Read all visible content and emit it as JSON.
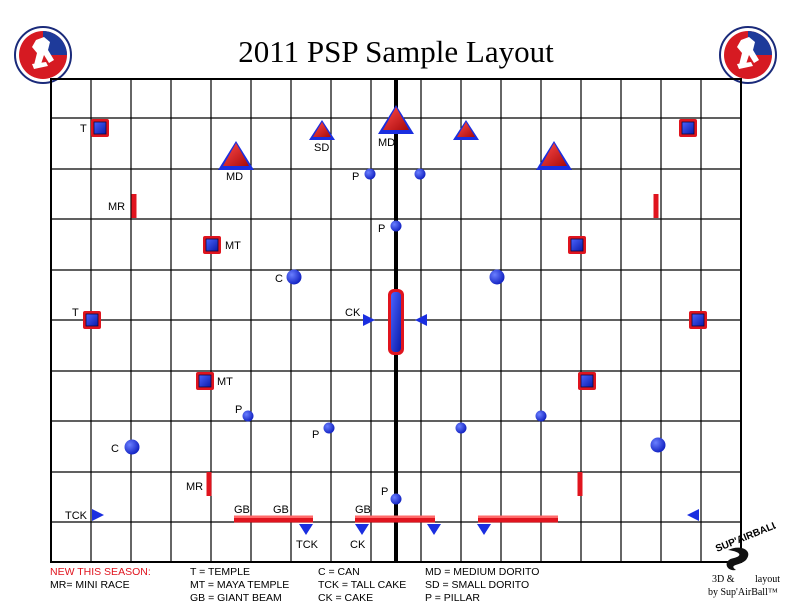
{
  "title": "2011 PSP Sample Layout",
  "logos": {
    "left": "psp-player-logo-icon",
    "right": "psp-player-logo-icon"
  },
  "colors": {
    "bunker_blue": "#1a2ee0",
    "bunker_red": "#e0141e",
    "grid": "#000000"
  },
  "field": {
    "bunkers": [
      {
        "type": "temple",
        "label": "T"
      },
      {
        "type": "temple",
        "label": ""
      },
      {
        "type": "temple",
        "label": "T"
      },
      {
        "type": "temple",
        "label": ""
      },
      {
        "type": "small_dorito",
        "label": "SD"
      },
      {
        "type": "small_dorito",
        "label": ""
      },
      {
        "type": "medium_dorito",
        "label": "MD"
      },
      {
        "type": "medium_dorito",
        "label": "MD"
      },
      {
        "type": "medium_dorito",
        "label": ""
      },
      {
        "type": "pillar",
        "label": "P"
      },
      {
        "type": "pillar",
        "label": ""
      },
      {
        "type": "pillar",
        "label": "P"
      },
      {
        "type": "pillar",
        "label": "P"
      },
      {
        "type": "pillar",
        "label": ""
      },
      {
        "type": "pillar",
        "label": "P"
      },
      {
        "type": "pillar",
        "label": ""
      },
      {
        "type": "pillar",
        "label": "P"
      },
      {
        "type": "mini_race",
        "label": "MR"
      },
      {
        "type": "mini_race",
        "label": ""
      },
      {
        "type": "mini_race",
        "label": "MR"
      },
      {
        "type": "mini_race",
        "label": ""
      },
      {
        "type": "maya_temple",
        "label": "MT"
      },
      {
        "type": "maya_temple",
        "label": ""
      },
      {
        "type": "maya_temple",
        "label": "MT"
      },
      {
        "type": "maya_temple",
        "label": ""
      },
      {
        "type": "can",
        "label": "C"
      },
      {
        "type": "can",
        "label": ""
      },
      {
        "type": "can",
        "label": "C"
      },
      {
        "type": "can",
        "label": ""
      },
      {
        "type": "cake",
        "label": "CK"
      },
      {
        "type": "cake",
        "label": ""
      },
      {
        "type": "tall_cake",
        "label": "TCK"
      },
      {
        "type": "tall_cake",
        "label": ""
      },
      {
        "type": "cake_down",
        "label": "TCK"
      },
      {
        "type": "cake_down",
        "label": "CK"
      },
      {
        "type": "cake_down",
        "label": ""
      },
      {
        "type": "cake_down",
        "label": ""
      },
      {
        "type": "giant_beam",
        "label": "GB"
      },
      {
        "type": "giant_beam",
        "label": "GB"
      },
      {
        "type": "giant_beam",
        "label": "GB"
      },
      {
        "type": "giant_beam",
        "label": ""
      },
      {
        "type": "giant_beam",
        "label": ""
      },
      {
        "type": "giant_beam",
        "label": ""
      },
      {
        "type": "snake_center",
        "label": ""
      }
    ]
  },
  "legend": {
    "new_this_season": "NEW THIS SEASON:",
    "mr": "MR= MINI RACE",
    "t": "T = TEMPLE",
    "mt": "MT = MAYA TEMPLE",
    "gb": "GB = GIANT BEAM",
    "c": "C = CAN",
    "tck": "TCK = TALL CAKE",
    "ck": "CK = CAKE",
    "md": "MD = MEDIUM DORITO",
    "sd": "SD = SMALL DORITO",
    "p": "P = PILLAR"
  },
  "brand": {
    "logo": "sup-airball-logo-icon",
    "logo_text": "SUP'AIRBALL",
    "credit_line1": "3D &",
    "credit_line1b": "layout",
    "credit_line2": "by Sup'AirBall™"
  }
}
